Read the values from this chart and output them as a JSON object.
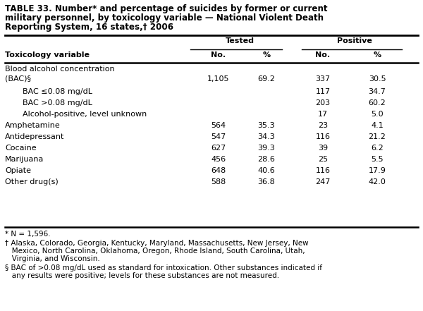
{
  "title_line1": "TABLE 33. Number* and percentage of suicides by former or current",
  "title_line2": "military personnel, by toxicology variable — National Violent Death",
  "title_line3": "Reporting System, 16 states,† 2006",
  "col_header_group1": "Tested",
  "col_header_group2": "Positive",
  "rows": [
    {
      "label": "Blood alcohol concentration",
      "label2": "(BAC)§",
      "indent": 0,
      "tested_no": "1,105",
      "tested_pct": "69.2",
      "pos_no": "337",
      "pos_pct": "30.5"
    },
    {
      "label": "BAC ≤0.08 mg/dL",
      "label2": "",
      "indent": 1,
      "tested_no": "",
      "tested_pct": "",
      "pos_no": "117",
      "pos_pct": "34.7"
    },
    {
      "label": "BAC >0.08 mg/dL",
      "label2": "",
      "indent": 1,
      "tested_no": "",
      "tested_pct": "",
      "pos_no": "203",
      "pos_pct": "60.2"
    },
    {
      "label": "Alcohol-positive, level unknown",
      "label2": "",
      "indent": 1,
      "tested_no": "",
      "tested_pct": "",
      "pos_no": "17",
      "pos_pct": "5.0"
    },
    {
      "label": "Amphetamine",
      "label2": "",
      "indent": 0,
      "tested_no": "564",
      "tested_pct": "35.3",
      "pos_no": "23",
      "pos_pct": "4.1"
    },
    {
      "label": "Antidepressant",
      "label2": "",
      "indent": 0,
      "tested_no": "547",
      "tested_pct": "34.3",
      "pos_no": "116",
      "pos_pct": "21.2"
    },
    {
      "label": "Cocaine",
      "label2": "",
      "indent": 0,
      "tested_no": "627",
      "tested_pct": "39.3",
      "pos_no": "39",
      "pos_pct": "6.2"
    },
    {
      "label": "Marijuana",
      "label2": "",
      "indent": 0,
      "tested_no": "456",
      "tested_pct": "28.6",
      "pos_no": "25",
      "pos_pct": "5.5"
    },
    {
      "label": "Opiate",
      "label2": "",
      "indent": 0,
      "tested_no": "648",
      "tested_pct": "40.6",
      "pos_no": "116",
      "pos_pct": "17.9"
    },
    {
      "label": "Other drug(s)",
      "label2": "",
      "indent": 0,
      "tested_no": "588",
      "tested_pct": "36.8",
      "pos_no": "247",
      "pos_pct": "42.0"
    }
  ],
  "footnote1": "* N = 1,596.",
  "footnote2": "† Alaska, Colorado, Georgia, Kentucky, Maryland, Massachusetts, New Jersey, New Mexico, North Carolina, Oklahoma, Oregon, Rhode Island, South Carolina, Utah, Virginia, and Wisconsin.",
  "footnote3": "§ BAC of >0.08 mg/dL used as standard for intoxication. Other substances indicated if any results were positive; levels for these substances are not measured.",
  "bg_color": "#ffffff",
  "text_color": "#000000"
}
